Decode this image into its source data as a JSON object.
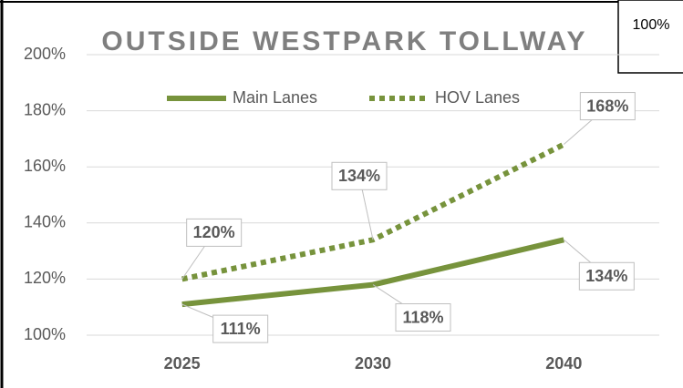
{
  "chart_data": {
    "type": "line",
    "title": "OUTSIDE WESTPARK TOLLWAY",
    "annotation": "100%",
    "categories": [
      "2025",
      "2030",
      "2040"
    ],
    "series": [
      {
        "name": "Main Lanes",
        "color": "#77933c",
        "style": "solid",
        "values": [
          111,
          118,
          134
        ],
        "value_labels": [
          "111%",
          "118%",
          "134%"
        ]
      },
      {
        "name": "HOV Lanes",
        "color": "#77933c",
        "style": "dotted",
        "values": [
          120,
          134,
          168
        ],
        "value_labels": [
          "120%",
          "134%",
          "168%"
        ]
      }
    ],
    "ylim": [
      100,
      200
    ],
    "yticks": [
      {
        "value": 100,
        "label": "100%"
      },
      {
        "value": 120,
        "label": "120%"
      },
      {
        "value": 140,
        "label": "140%"
      },
      {
        "value": 160,
        "label": "160%"
      },
      {
        "value": 180,
        "label": "180%"
      },
      {
        "value": 200,
        "label": "200%"
      }
    ],
    "grid": true,
    "legend": "top"
  }
}
